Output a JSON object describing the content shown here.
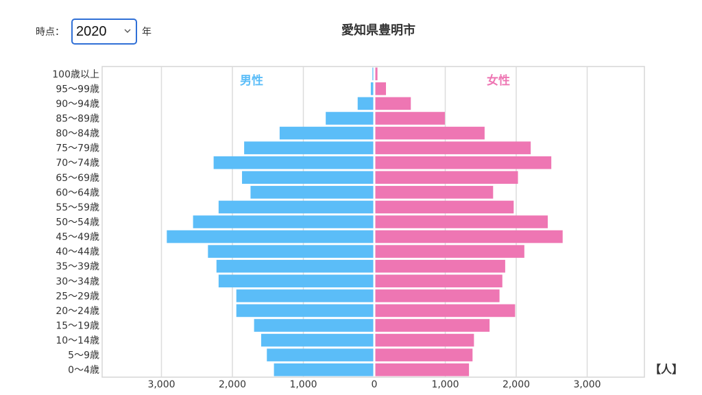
{
  "controls": {
    "year_label": "時点：",
    "selected_year": "2020",
    "year_suffix": "年",
    "chevron_icon": "chevron-down-icon"
  },
  "colors": {
    "male": "#5bbdf8",
    "female": "#ee76b3"
  },
  "chart_data": {
    "type": "bar",
    "orientation": "horizontal",
    "layout": "population-pyramid",
    "title": "愛知県豊明市",
    "unit": "【人】",
    "categories": [
      "100歳以上",
      "95〜99歳",
      "90〜94歳",
      "85〜89歳",
      "80〜84歳",
      "75〜79歳",
      "70〜74歳",
      "65〜69歳",
      "60〜64歳",
      "55〜59歳",
      "50〜54歳",
      "45〜49歳",
      "40〜44歳",
      "35〜39歳",
      "30〜34歳",
      "25〜29歳",
      "20〜24歳",
      "15〜19歳",
      "10〜14歳",
      "5〜9歳",
      "0〜4歳"
    ],
    "series": [
      {
        "name": "男性",
        "color": "#5bbdf8",
        "values": [
          12,
          35,
          220,
          670,
          1320,
          1820,
          2250,
          1850,
          1730,
          2180,
          2540,
          2910,
          2330,
          2210,
          2180,
          1930,
          1930,
          1680,
          1580,
          1500,
          1400
        ]
      },
      {
        "name": "女性",
        "color": "#ee76b3",
        "values": [
          30,
          150,
          500,
          980,
          1540,
          2190,
          2480,
          2010,
          1660,
          1950,
          2430,
          2640,
          2100,
          1830,
          1790,
          1750,
          1970,
          1610,
          1390,
          1370,
          1320
        ]
      }
    ],
    "xticks": [
      3000,
      2000,
      1000,
      0,
      1000,
      2000,
      3000
    ],
    "xtick_labels": [
      "3,000",
      "2,000",
      "1,000",
      "0",
      "1,000",
      "2,000",
      "3,000"
    ],
    "xlim": [
      -3800,
      3800
    ],
    "grid": true,
    "legend": "series labels printed inside the plot area (top-left / top-right)"
  }
}
